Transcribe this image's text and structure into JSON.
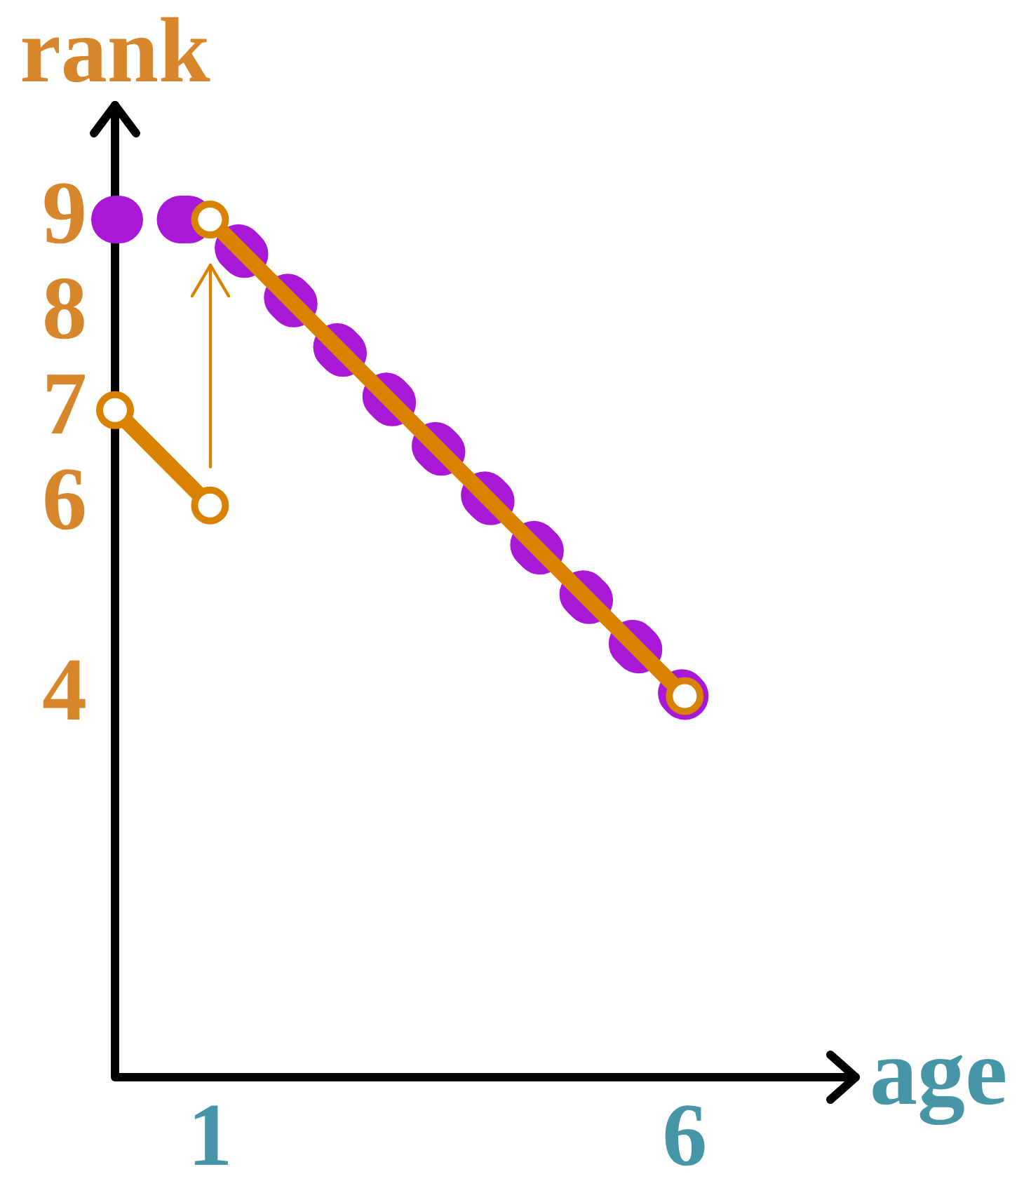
{
  "chart_data": {
    "type": "line",
    "xlabel": "age",
    "ylabel": "rank",
    "series": [
      {
        "color": "#d98200",
        "x": [
          0,
          1
        ],
        "values": [
          7,
          6
        ],
        "marker": "circle",
        "line_style": "solid"
      },
      {
        "color": "#d98200",
        "x": [
          1,
          6
        ],
        "values": [
          9,
          4
        ],
        "marker": "circle",
        "line_style": "solid"
      },
      {
        "color": "#a818d6",
        "x": [
          0,
          1,
          6
        ],
        "values": [
          9,
          9,
          4
        ],
        "marker": "none",
        "line_style": "dotted"
      }
    ],
    "xlim": [
      0,
      7.8
    ],
    "ylim": [
      0,
      10.2
    ],
    "xticks": [
      1,
      6
    ],
    "yticks": [
      4,
      6,
      7,
      8,
      9
    ]
  }
}
